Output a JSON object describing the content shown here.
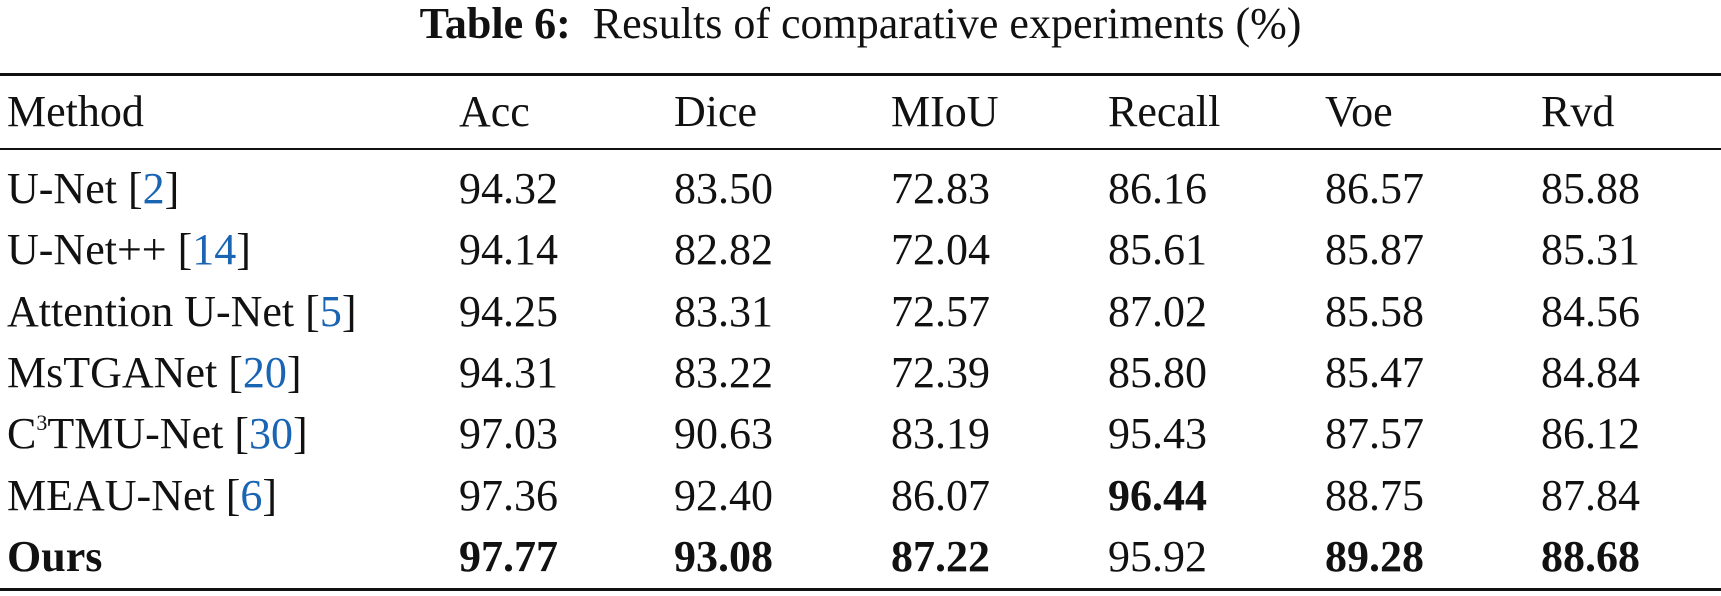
{
  "title": {
    "label": "Table 6:",
    "text": "Results of comparative experiments (%)"
  },
  "table": {
    "header": [
      "Method",
      "Acc",
      "Dice",
      "MIoU",
      "Recall",
      "Voe",
      "Rvd"
    ],
    "rows": [
      {
        "method": [
          {
            "text": "U-Net ["
          },
          {
            "text": "2",
            "link": true
          },
          {
            "text": "]"
          }
        ],
        "values": [
          "94.32",
          "83.50",
          "72.83",
          "86.16",
          "86.57",
          "85.88"
        ],
        "bold": []
      },
      {
        "method": [
          {
            "text": "U-Net++ ["
          },
          {
            "text": "14",
            "link": true
          },
          {
            "text": "]"
          }
        ],
        "values": [
          "94.14",
          "82.82",
          "72.04",
          "85.61",
          "85.87",
          "85.31"
        ],
        "bold": []
      },
      {
        "method": [
          {
            "text": "Attention U-Net ["
          },
          {
            "text": "5",
            "link": true
          },
          {
            "text": "]"
          }
        ],
        "values": [
          "94.25",
          "83.31",
          "72.57",
          "87.02",
          "85.58",
          "84.56"
        ],
        "bold": []
      },
      {
        "method": [
          {
            "text": "MsTGANet ["
          },
          {
            "text": "20",
            "link": true
          },
          {
            "text": "]"
          }
        ],
        "values": [
          "94.31",
          "83.22",
          "72.39",
          "85.80",
          "85.47",
          "84.84"
        ],
        "bold": []
      },
      {
        "method": [
          {
            "text": "C"
          },
          {
            "text": "3",
            "sup": true
          },
          {
            "text": "TMU-Net ["
          },
          {
            "text": "30",
            "link": true
          },
          {
            "text": "]"
          }
        ],
        "values": [
          "97.03",
          "90.63",
          "83.19",
          "95.43",
          "87.57",
          "86.12"
        ],
        "bold": []
      },
      {
        "method": [
          {
            "text": "MEAU-Net ["
          },
          {
            "text": "6",
            "link": true
          },
          {
            "text": "]"
          }
        ],
        "values": [
          "97.36",
          "92.40",
          "86.07",
          "96.44",
          "88.75",
          "87.84"
        ],
        "bold": [
          3
        ]
      },
      {
        "method": [
          {
            "text": "Ours",
            "bold": true
          }
        ],
        "values": [
          "97.77",
          "93.08",
          "87.22",
          "95.92",
          "89.28",
          "88.68"
        ],
        "bold": [
          0,
          1,
          2,
          4,
          5
        ]
      }
    ]
  }
}
